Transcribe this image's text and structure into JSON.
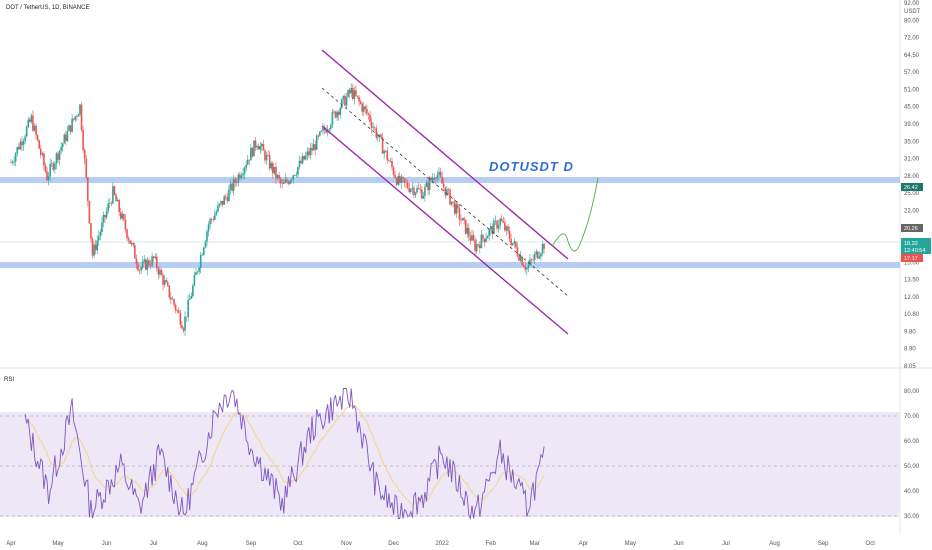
{
  "header": {
    "title": "DOT / TetherUS, 1D, BINANCE"
  },
  "price_axis": {
    "unit": "USDT",
    "ticks": [
      "92.00",
      "80.00",
      "72.00",
      "64.50",
      "57.00",
      "51.00",
      "45.00",
      "39.00",
      "35.00",
      "31.00",
      "28.00",
      "25.00",
      "22.00",
      "19.00",
      "17.00",
      "15.00",
      "13.50",
      "12.00",
      "10.80",
      "9.80",
      "8.90",
      "8.05"
    ]
  },
  "badges": {
    "resistance": "26.42",
    "prev": "20.26",
    "last_price": "18.32",
    "countdown": "12:40:54",
    "support": "17.17"
  },
  "annotation": "DOTUSDT   D",
  "rsi": {
    "label": "RSI",
    "ticks": [
      "80.00",
      "70.00",
      "60.00",
      "50.00",
      "40.00",
      "30.00"
    ]
  },
  "time_axis": {
    "labels": [
      "Apr",
      "May",
      "Jun",
      "Jul",
      "Aug",
      "Sep",
      "Oct",
      "Nov",
      "Dec",
      "2022",
      "Feb",
      "Mar",
      "Apr",
      "May",
      "Jun",
      "Jul",
      "Aug",
      "Sep",
      "Oct"
    ]
  },
  "colors": {
    "up": "#26a69a",
    "down": "#ef5350",
    "channel": "#9c27b0",
    "zone": "#b7cdf1",
    "rsi_line": "#7e57c2",
    "rsi_ma": "#f6d37a",
    "rsi_band": "#ede7f6",
    "projection": "#4caf50"
  },
  "chart_data": {
    "type": "candlestick",
    "symbol": "DOT / TetherUS",
    "interval": "1D",
    "exchange": "BINANCE",
    "y_scale": "log",
    "ylim": [
      8.05,
      92.0
    ],
    "x_range": [
      "2021-03-25",
      "2022-10-20"
    ],
    "price_path": [
      {
        "date": "2021-04-01",
        "close": 32
      },
      {
        "date": "2021-04-14",
        "close": 43
      },
      {
        "date": "2021-04-24",
        "close": 29
      },
      {
        "date": "2021-05-15",
        "close": 47
      },
      {
        "date": "2021-05-23",
        "close": 17
      },
      {
        "date": "2021-06-05",
        "close": 26
      },
      {
        "date": "2021-06-22",
        "close": 15.5
      },
      {
        "date": "2021-07-01",
        "close": 16.5
      },
      {
        "date": "2021-07-20",
        "close": 10.5
      },
      {
        "date": "2021-08-05",
        "close": 21
      },
      {
        "date": "2021-08-20",
        "close": 27
      },
      {
        "date": "2021-09-05",
        "close": 37
      },
      {
        "date": "2021-09-21",
        "close": 27
      },
      {
        "date": "2021-10-10",
        "close": 35
      },
      {
        "date": "2021-10-25",
        "close": 45
      },
      {
        "date": "2021-11-04",
        "close": 52
      },
      {
        "date": "2021-11-15",
        "close": 44
      },
      {
        "date": "2021-12-04",
        "close": 28
      },
      {
        "date": "2021-12-20",
        "close": 26
      },
      {
        "date": "2021-12-28",
        "close": 30
      },
      {
        "date": "2022-01-22",
        "close": 18
      },
      {
        "date": "2022-02-07",
        "close": 21.5
      },
      {
        "date": "2022-02-24",
        "close": 15.5
      },
      {
        "date": "2022-03-07",
        "close": 18.32
      }
    ],
    "horizontal_zones": [
      26.42,
      17.17
    ],
    "channel": {
      "upper": [
        {
          "date": "2021-10-25",
          "price": 64
        },
        {
          "date": "2022-03-12",
          "price": 17.5
        }
      ],
      "middle": [
        {
          "date": "2021-10-25",
          "price": 48
        },
        {
          "date": "2022-03-12",
          "price": 14
        }
      ],
      "lower": [
        {
          "date": "2021-10-25",
          "price": 45
        },
        {
          "date": "2022-03-12",
          "price": 9.9
        }
      ]
    },
    "rsi": {
      "period_values": [
        {
          "date": "2021-04-10",
          "value": 68
        },
        {
          "date": "2021-04-25",
          "value": 40
        },
        {
          "date": "2021-05-10",
          "value": 72
        },
        {
          "date": "2021-05-22",
          "value": 32
        },
        {
          "date": "2021-06-10",
          "value": 50
        },
        {
          "date": "2021-06-22",
          "value": 33
        },
        {
          "date": "2021-07-05",
          "value": 55
        },
        {
          "date": "2021-07-20",
          "value": 30
        },
        {
          "date": "2021-08-10",
          "value": 73
        },
        {
          "date": "2021-08-20",
          "value": 81
        },
        {
          "date": "2021-09-01",
          "value": 58
        },
        {
          "date": "2021-09-21",
          "value": 35
        },
        {
          "date": "2021-10-10",
          "value": 65
        },
        {
          "date": "2021-10-25",
          "value": 75
        },
        {
          "date": "2021-11-04",
          "value": 78
        },
        {
          "date": "2021-11-20",
          "value": 42
        },
        {
          "date": "2021-12-04",
          "value": 31
        },
        {
          "date": "2021-12-20",
          "value": 38
        },
        {
          "date": "2022-01-01",
          "value": 55
        },
        {
          "date": "2022-01-22",
          "value": 30
        },
        {
          "date": "2022-02-07",
          "value": 55
        },
        {
          "date": "2022-02-24",
          "value": 34
        },
        {
          "date": "2022-03-07",
          "value": 52
        }
      ],
      "levels": [
        70,
        50,
        30
      ],
      "ylim": [
        28,
        82
      ]
    }
  }
}
